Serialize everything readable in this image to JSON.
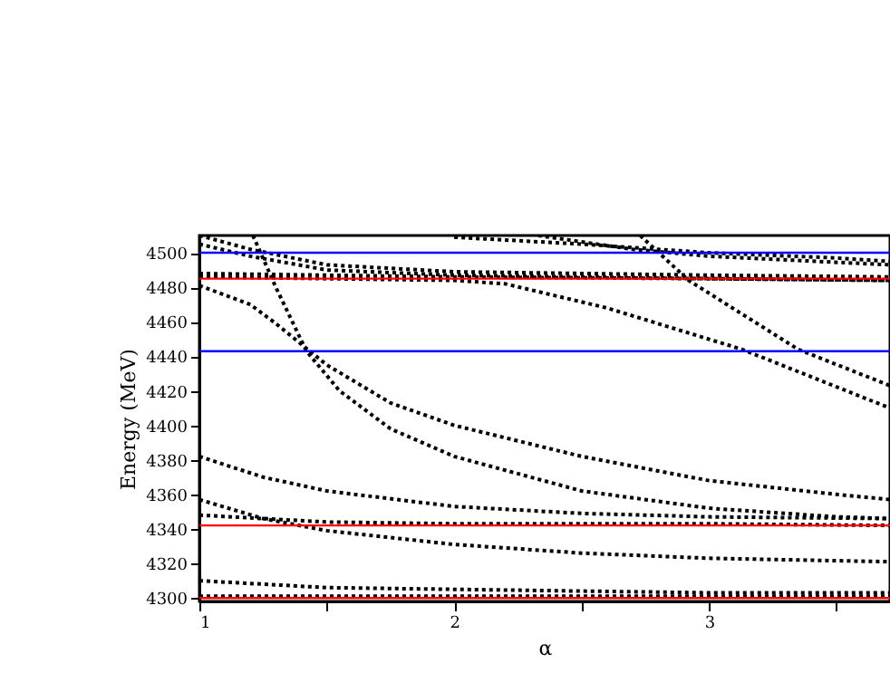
{
  "chart_data": {
    "type": "line",
    "xlabel": "α",
    "ylabel": "Energy (MeV)",
    "xlim": [
      1,
      3.71
    ],
    "ylim": [
      4298,
      4510
    ],
    "xticks": [
      1,
      {
        "value": 1.5,
        "label": null
      },
      2,
      {
        "value": 2.5,
        "label": null
      },
      3,
      {
        "value": 3.5,
        "label": null
      }
    ],
    "yticks": [
      4300,
      4320,
      4340,
      4360,
      4380,
      4400,
      4420,
      4440,
      4460,
      4480,
      4500
    ],
    "line_style": "dotted",
    "grid": false,
    "series": [
      {
        "color": "#000000",
        "x": [
          1,
          1.2,
          1.3,
          1.5,
          1.75,
          2,
          2.5,
          3,
          3.5,
          3.71
        ],
        "values": [
          4481,
          4470,
          4459,
          4435,
          4413,
          4400,
          4382,
          4368,
          4360,
          4357
        ]
      },
      {
        "color": "#000000",
        "x": [
          1.21,
          1.3,
          1.42,
          1.55,
          1.75,
          2,
          2.5,
          3,
          3.5,
          3.71
        ],
        "values": [
          4510,
          4480,
          4443,
          4420,
          4398,
          4382,
          4362,
          4352,
          4347,
          4346
        ]
      },
      {
        "color": "#000000",
        "x": [
          1,
          1.25,
          1.5,
          2,
          2.5,
          3,
          3.71
        ],
        "values": [
          4382,
          4370,
          4362,
          4353,
          4349,
          4347,
          4346
        ]
      },
      {
        "color": "#000000",
        "x": [
          1,
          1.25,
          1.5,
          2,
          2.5,
          3,
          3.71
        ],
        "values": [
          4357,
          4346,
          4339,
          4331,
          4326,
          4323,
          4321
        ]
      },
      {
        "color": "#000000",
        "x": [
          1,
          1.5,
          2,
          3,
          3.71
        ],
        "values": [
          4348,
          4344,
          4343,
          4343,
          4342
        ]
      },
      {
        "color": "#000000",
        "x": [
          1,
          1.5,
          2,
          3,
          3.71
        ],
        "values": [
          4310,
          4306,
          4305,
          4303,
          4303
        ]
      },
      {
        "color": "#000000",
        "x": [
          1,
          2,
          3,
          3.71
        ],
        "values": [
          4301,
          4301,
          4301,
          4301
        ]
      },
      {
        "color": "#000000",
        "x": [
          1,
          1.2,
          1.5,
          2,
          3,
          3.71
        ],
        "values": [
          4510,
          4502,
          4493,
          4489,
          4487,
          4486
        ]
      },
      {
        "color": "#000000",
        "x": [
          1,
          1.2,
          1.5,
          2,
          3,
          3.71
        ],
        "values": [
          4505,
          4498,
          4490,
          4487,
          4485,
          4484
        ]
      },
      {
        "color": "#000000",
        "x": [
          1,
          2,
          3,
          3.71
        ],
        "values": [
          4488,
          4486,
          4485,
          4484
        ]
      },
      {
        "color": "#000000",
        "x": [
          1,
          1.5,
          2,
          2.2,
          2.6,
          3.13,
          3.71
        ],
        "values": [
          4486,
          4485,
          4484,
          4482,
          4468,
          4444,
          4410
        ]
      },
      {
        "color": "#000000",
        "x": [
          2,
          2.5,
          3,
          3.5,
          3.71
        ],
        "values": [
          4509,
          4505,
          4500,
          4497,
          4495
        ]
      },
      {
        "color": "#000000",
        "x": [
          2.33,
          2.7,
          3,
          3.71
        ],
        "values": [
          4510,
          4502,
          4498,
          4493
        ]
      },
      {
        "color": "#000000",
        "x": [
          2.73,
          2.92,
          3.35,
          3.71
        ],
        "values": [
          4510,
          4484,
          4444,
          4423
        ]
      }
    ],
    "ref_lines": [
      {
        "axis": "y",
        "value": 4500,
        "color": "#0000ff"
      },
      {
        "axis": "y",
        "value": 4443,
        "color": "#0000ff"
      },
      {
        "axis": "y",
        "value": 4485,
        "color": "#ff0000"
      },
      {
        "axis": "y",
        "value": 4342,
        "color": "#ff0000"
      },
      {
        "axis": "y",
        "value": 4300,
        "color": "#ff0000"
      }
    ]
  }
}
